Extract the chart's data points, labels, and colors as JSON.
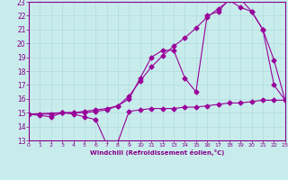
{
  "xlabel": "Windchill (Refroidissement éolien,°C)",
  "xlim": [
    0,
    23
  ],
  "ylim": [
    13,
    23
  ],
  "xticks": [
    0,
    1,
    2,
    3,
    4,
    5,
    6,
    7,
    8,
    9,
    10,
    11,
    12,
    13,
    14,
    15,
    16,
    17,
    18,
    19,
    20,
    21,
    22,
    23
  ],
  "yticks": [
    13,
    14,
    15,
    16,
    17,
    18,
    19,
    20,
    21,
    22,
    23
  ],
  "bg_color": "#c8ecec",
  "line_color": "#990099",
  "line1_x": [
    0,
    1,
    2,
    3,
    4,
    5,
    6,
    7,
    8,
    9,
    10,
    11,
    12,
    13,
    14,
    15,
    16,
    17,
    18,
    19,
    20,
    21,
    22,
    23
  ],
  "line1_y": [
    14.9,
    14.8,
    14.7,
    15.0,
    14.9,
    14.7,
    14.5,
    12.7,
    12.9,
    15.1,
    15.2,
    15.3,
    15.3,
    15.3,
    15.4,
    15.4,
    15.5,
    15.6,
    15.7,
    15.7,
    15.8,
    15.9,
    15.9,
    15.9
  ],
  "line2_x": [
    0,
    1,
    2,
    3,
    4,
    5,
    6,
    7,
    8,
    9,
    10,
    11,
    12,
    13,
    14,
    15,
    16,
    17,
    18,
    19,
    20,
    21,
    22,
    23
  ],
  "line2_y": [
    14.9,
    14.9,
    14.9,
    15.0,
    15.0,
    15.1,
    15.2,
    15.3,
    15.5,
    16.2,
    17.3,
    18.3,
    19.1,
    19.8,
    20.4,
    21.1,
    21.9,
    22.5,
    23.1,
    22.6,
    22.3,
    21.0,
    18.8,
    15.9
  ],
  "line3_x": [
    0,
    3,
    4,
    5,
    6,
    7,
    8,
    9,
    10,
    11,
    12,
    13,
    14,
    15,
    16,
    17,
    18,
    19,
    20,
    21,
    22,
    23
  ],
  "line3_y": [
    14.9,
    15.0,
    15.0,
    15.0,
    15.1,
    15.2,
    15.5,
    16.0,
    17.5,
    19.0,
    19.5,
    19.5,
    17.5,
    16.5,
    22.0,
    22.3,
    23.2,
    23.2,
    22.3,
    21.0,
    17.0,
    15.9
  ],
  "marker_size": 2.5,
  "lw": 0.8
}
